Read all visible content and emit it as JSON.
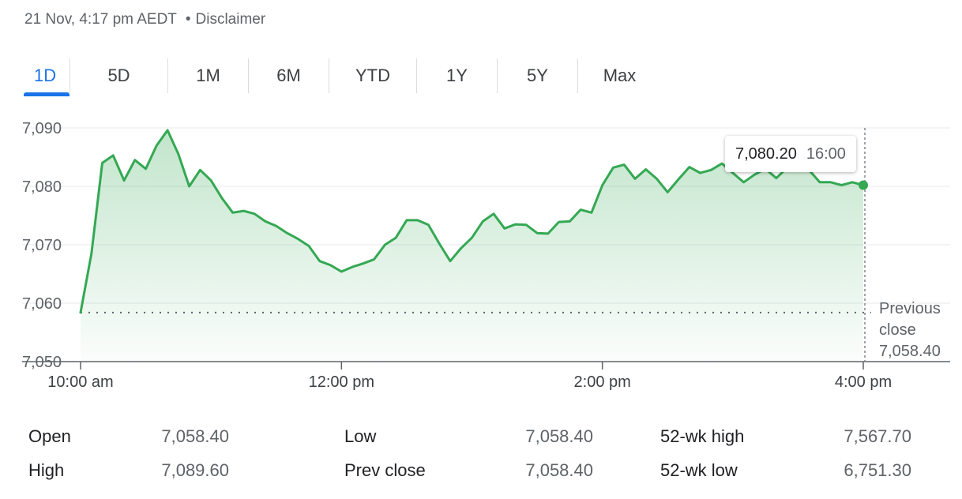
{
  "header": {
    "timestamp": "21 Nov, 4:17 pm AEDT",
    "separator": "•",
    "disclaimer": "Disclaimer"
  },
  "tabs": [
    {
      "label": "1D",
      "active": true
    },
    {
      "label": "5D"
    },
    {
      "label": "1M"
    },
    {
      "label": "6M"
    },
    {
      "label": "YTD"
    },
    {
      "label": "1Y"
    },
    {
      "label": "5Y"
    },
    {
      "label": "Max"
    }
  ],
  "tooltip": {
    "value": "7,080.20",
    "time": "16:00"
  },
  "previous_close": {
    "line1": "Previous",
    "line2": "close",
    "value": "7,058.40"
  },
  "colors": {
    "line": "#34a853",
    "accent": "#1a73e8"
  },
  "chart_data": {
    "type": "area",
    "y_ticks": [
      "7,090",
      "7,080",
      "7,070",
      "7,060",
      "7,050"
    ],
    "ylim": [
      7050,
      7092
    ],
    "x_ticks": [
      {
        "t": 0,
        "label": "10:00 am"
      },
      {
        "t": 120,
        "label": "12:00 pm"
      },
      {
        "t": 240,
        "label": "2:00 pm"
      },
      {
        "t": 360,
        "label": "4:00 pm"
      }
    ],
    "xlim": [
      0,
      400
    ],
    "previous_close": 7058.4,
    "points": [
      [
        0,
        7058.4
      ],
      [
        5,
        7068.5
      ],
      [
        10,
        7084.0
      ],
      [
        15,
        7085.3
      ],
      [
        20,
        7081.0
      ],
      [
        25,
        7084.5
      ],
      [
        30,
        7083.0
      ],
      [
        35,
        7087.0
      ],
      [
        40,
        7089.6
      ],
      [
        45,
        7085.5
      ],
      [
        50,
        7080.0
      ],
      [
        55,
        7082.8
      ],
      [
        60,
        7081.0
      ],
      [
        65,
        7078.0
      ],
      [
        70,
        7075.5
      ],
      [
        75,
        7075.8
      ],
      [
        80,
        7075.3
      ],
      [
        85,
        7074.0
      ],
      [
        90,
        7073.2
      ],
      [
        95,
        7072.0
      ],
      [
        100,
        7071.0
      ],
      [
        105,
        7069.8
      ],
      [
        110,
        7067.2
      ],
      [
        115,
        7066.5
      ],
      [
        120,
        7065.4
      ],
      [
        125,
        7066.2
      ],
      [
        130,
        7066.8
      ],
      [
        135,
        7067.5
      ],
      [
        140,
        7070.0
      ],
      [
        145,
        7071.2
      ],
      [
        150,
        7074.2
      ],
      [
        155,
        7074.2
      ],
      [
        160,
        7073.4
      ],
      [
        165,
        7070.2
      ],
      [
        170,
        7067.2
      ],
      [
        175,
        7069.4
      ],
      [
        180,
        7071.2
      ],
      [
        185,
        7074.0
      ],
      [
        190,
        7075.3
      ],
      [
        195,
        7072.8
      ],
      [
        200,
        7073.5
      ],
      [
        205,
        7073.4
      ],
      [
        210,
        7072.0
      ],
      [
        215,
        7071.9
      ],
      [
        220,
        7073.9
      ],
      [
        225,
        7074.0
      ],
      [
        230,
        7076.0
      ],
      [
        235,
        7075.5
      ],
      [
        240,
        7080.2
      ],
      [
        245,
        7083.2
      ],
      [
        250,
        7083.7
      ],
      [
        255,
        7081.3
      ],
      [
        260,
        7082.9
      ],
      [
        265,
        7081.3
      ],
      [
        270,
        7079.0
      ],
      [
        275,
        7081.2
      ],
      [
        280,
        7083.3
      ],
      [
        285,
        7082.3
      ],
      [
        290,
        7082.8
      ],
      [
        295,
        7083.9
      ],
      [
        300,
        7082.3
      ],
      [
        305,
        7080.7
      ],
      [
        310,
        7082.0
      ],
      [
        315,
        7083.0
      ],
      [
        320,
        7081.4
      ],
      [
        325,
        7083.2
      ],
      [
        330,
        7083.4
      ],
      [
        335,
        7082.8
      ],
      [
        340,
        7080.7
      ],
      [
        345,
        7080.7
      ],
      [
        350,
        7080.2
      ],
      [
        355,
        7080.7
      ],
      [
        360,
        7080.2
      ]
    ]
  },
  "stats": [
    {
      "label": "Open",
      "value": "7,058.40"
    },
    {
      "label": "High",
      "value": "7,089.60"
    },
    {
      "label": "Low",
      "value": "7,058.40"
    },
    {
      "label": "Prev close",
      "value": "7,058.40"
    },
    {
      "label": "52-wk high",
      "value": "7,567.70"
    },
    {
      "label": "52-wk low",
      "value": "6,751.30"
    }
  ]
}
